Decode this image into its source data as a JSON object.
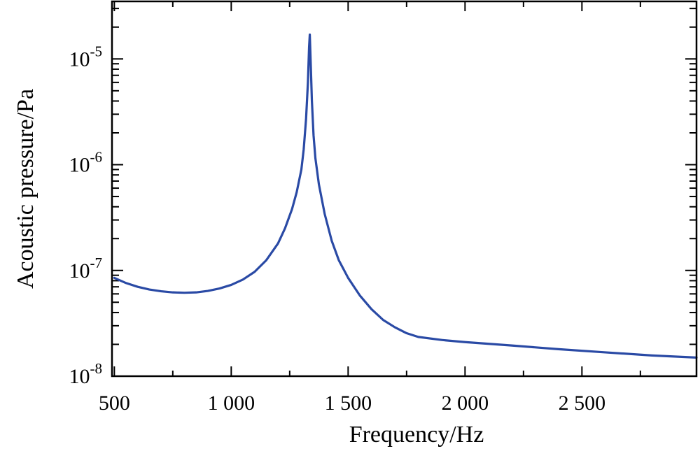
{
  "chart_data": {
    "type": "line",
    "title": "",
    "xlabel": "Frequency/Hz",
    "ylabel": "Acoustic pressure/Pa",
    "xscale": "linear",
    "yscale": "log",
    "xlim": [
      490,
      2990
    ],
    "ylim": [
      1e-08,
      3.5e-05
    ],
    "grid": false,
    "legend": "none",
    "x_ticks": [
      {
        "value": 500,
        "label": "500"
      },
      {
        "value": 1000,
        "label": "1 000"
      },
      {
        "value": 1500,
        "label": "1 500"
      },
      {
        "value": 2000,
        "label": "2 000"
      },
      {
        "value": 2500,
        "label": "2 500"
      }
    ],
    "y_ticks": [
      {
        "value": 1e-08,
        "base": "10",
        "exp": "-8"
      },
      {
        "value": 1e-07,
        "base": "10",
        "exp": "-7"
      },
      {
        "value": 1e-06,
        "base": "10",
        "exp": "-6"
      },
      {
        "value": 1e-05,
        "base": "10",
        "exp": "-5"
      }
    ],
    "series": [
      {
        "color": "#2a4aa5",
        "points": [
          [
            500,
            8.5e-08
          ],
          [
            550,
            7.6e-08
          ],
          [
            600,
            7e-08
          ],
          [
            650,
            6.6e-08
          ],
          [
            700,
            6.35e-08
          ],
          [
            750,
            6.2e-08
          ],
          [
            800,
            6.15e-08
          ],
          [
            850,
            6.2e-08
          ],
          [
            900,
            6.4e-08
          ],
          [
            950,
            6.75e-08
          ],
          [
            1000,
            7.3e-08
          ],
          [
            1050,
            8.2e-08
          ],
          [
            1100,
            9.7e-08
          ],
          [
            1150,
            1.25e-07
          ],
          [
            1200,
            1.8e-07
          ],
          [
            1230,
            2.5e-07
          ],
          [
            1260,
            3.8e-07
          ],
          [
            1280,
            5.5e-07
          ],
          [
            1300,
            9e-07
          ],
          [
            1310,
            1.4e-06
          ],
          [
            1320,
            2.7e-06
          ],
          [
            1328,
            6e-06
          ],
          [
            1333,
            1.3e-05
          ],
          [
            1336,
            1.7e-05
          ],
          [
            1340,
            9e-06
          ],
          [
            1345,
            4e-06
          ],
          [
            1352,
            1.9e-06
          ],
          [
            1360,
            1.15e-06
          ],
          [
            1375,
            6.5e-07
          ],
          [
            1400,
            3.4e-07
          ],
          [
            1430,
            1.9e-07
          ],
          [
            1460,
            1.25e-07
          ],
          [
            1500,
            8.5e-08
          ],
          [
            1550,
            5.8e-08
          ],
          [
            1600,
            4.3e-08
          ],
          [
            1650,
            3.4e-08
          ],
          [
            1700,
            2.9e-08
          ],
          [
            1750,
            2.55e-08
          ],
          [
            1800,
            2.35e-08
          ],
          [
            1900,
            2.2e-08
          ],
          [
            2000,
            2.1e-08
          ],
          [
            2200,
            1.95e-08
          ],
          [
            2400,
            1.8e-08
          ],
          [
            2600,
            1.68e-08
          ],
          [
            2800,
            1.57e-08
          ],
          [
            2990,
            1.5e-08
          ]
        ]
      }
    ]
  }
}
